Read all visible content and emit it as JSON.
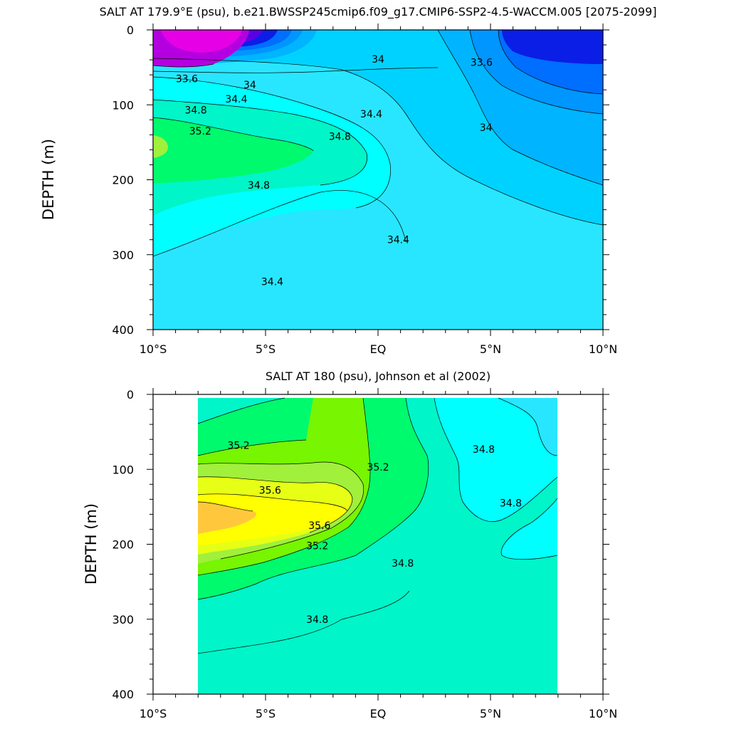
{
  "chart_data": [
    {
      "type": "contour",
      "title": "SALT AT 179.9°E (psu), b.e21.BWSSP245cmip6.f09_g17.CMIP6-SSP2-4.5-WACCM.005 [2075-2099]",
      "ylabel": "DEPTH (m)",
      "xlabel": "",
      "x_ticks": [
        "10°S",
        "5°S",
        "EQ",
        "5°N",
        "10°N"
      ],
      "x_tick_values": [
        -10,
        -5,
        0,
        5,
        10
      ],
      "y_ticks": [
        "0",
        "100",
        "200",
        "300",
        "400"
      ],
      "y_tick_values": [
        0,
        100,
        200,
        300,
        400
      ],
      "xlim": [
        -10,
        10
      ],
      "ylim": [
        400,
        0
      ],
      "y_reversed": true,
      "data_x_range": [
        -10,
        10
      ],
      "contour_interval": 0.2,
      "contour_labels": [
        {
          "text": "33.6",
          "lat": -8.5,
          "depth": 65
        },
        {
          "text": "34",
          "lat": -5.7,
          "depth": 73
        },
        {
          "text": "34.4",
          "lat": -6.3,
          "depth": 92
        },
        {
          "text": "34.8",
          "lat": -8.1,
          "depth": 107
        },
        {
          "text": "35.2",
          "lat": -7.9,
          "depth": 135
        },
        {
          "text": "34.8",
          "lat": -1.7,
          "depth": 142
        },
        {
          "text": "34.8",
          "lat": -5.3,
          "depth": 207
        },
        {
          "text": "34",
          "lat": 0.0,
          "depth": 39
        },
        {
          "text": "34.4",
          "lat": -0.3,
          "depth": 112
        },
        {
          "text": "33.6",
          "lat": 4.6,
          "depth": 43
        },
        {
          "text": "34",
          "lat": 4.8,
          "depth": 130
        },
        {
          "text": "34.4",
          "lat": 0.9,
          "depth": 280
        },
        {
          "text": "34.4",
          "lat": -4.7,
          "depth": 336
        }
      ],
      "colors": {
        "fresh_core": "#e600e6",
        "fresh_2": "#b400e0",
        "fresh_3": "#5a00e6",
        "deep_blue": "#0a1ee6",
        "blue": "#006eff",
        "mid_blue": "#0096ff",
        "sky": "#00b4ff",
        "light_sky": "#00d2ff",
        "cyan": "#28e6ff",
        "aqua": "#00ffff",
        "sea_green": "#00f5c8",
        "green": "#00fa6e",
        "yellow_green": "#a0f03c"
      }
    },
    {
      "type": "contour",
      "title": "SALT AT 180 (psu), Johnson et al (2002)",
      "ylabel": "DEPTH (m)",
      "xlabel": "",
      "x_ticks": [
        "10°S",
        "5°S",
        "EQ",
        "5°N",
        "10°N"
      ],
      "x_tick_values": [
        -10,
        -5,
        0,
        5,
        10
      ],
      "y_ticks": [
        "0",
        "100",
        "200",
        "300",
        "400"
      ],
      "y_tick_values": [
        0,
        100,
        200,
        300,
        400
      ],
      "xlim": [
        -10,
        10
      ],
      "ylim": [
        400,
        0
      ],
      "y_reversed": true,
      "data_x_range": [
        -8,
        8
      ],
      "contour_interval": 0.2,
      "contour_labels": [
        {
          "text": "35.2",
          "lat": -6.2,
          "depth": 68
        },
        {
          "text": "35.6",
          "lat": -4.8,
          "depth": 128
        },
        {
          "text": "35.6",
          "lat": -2.6,
          "depth": 175
        },
        {
          "text": "35.2",
          "lat": -2.7,
          "depth": 202
        },
        {
          "text": "35.2",
          "lat": 0.0,
          "depth": 97
        },
        {
          "text": "34.8",
          "lat": 4.7,
          "depth": 73
        },
        {
          "text": "34.8",
          "lat": 5.9,
          "depth": 145
        },
        {
          "text": "34.8",
          "lat": 1.1,
          "depth": 225
        },
        {
          "text": "34.8",
          "lat": -2.7,
          "depth": 300
        }
      ],
      "colors": {
        "orange": "#ffc83c",
        "yellow": "#ffff00",
        "yellow_light": "#e6ff14",
        "yellow_green": "#a0f03c",
        "lime": "#78f500",
        "green": "#00fa6e",
        "sea_green": "#00f5c8",
        "aqua": "#00ffff",
        "cyan": "#28e6ff"
      }
    }
  ]
}
